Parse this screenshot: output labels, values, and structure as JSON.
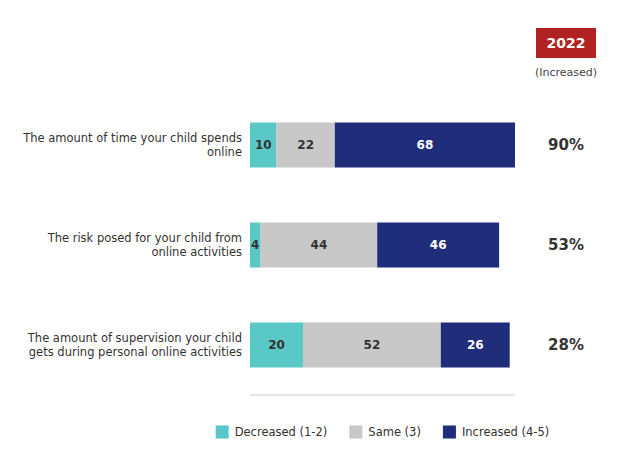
{
  "chart_data": {
    "type": "bar",
    "orientation": "horizontal",
    "stacked": true,
    "data_labels": true,
    "categories": [
      "The amount of time your child spends\nonline",
      "The risk posed for your child from\nonline activities",
      "The amount of supervision your child\ngets during personal online activities"
    ],
    "series": [
      {
        "name": "Decreased (1-2)",
        "color": "#5bc8c8",
        "values": [
          10,
          4,
          20
        ]
      },
      {
        "name": "Same (3)",
        "color": "#c8c8c8",
        "values": [
          22,
          44,
          52
        ]
      },
      {
        "name": "Increased (4-5)",
        "color": "#1f2d7b",
        "values": [
          68,
          46,
          26
        ]
      }
    ],
    "xlim": [
      0,
      100
    ],
    "tick_labels": false,
    "grid": false,
    "legend": "bottom",
    "annotations": [
      {
        "text": "2022",
        "color": "#b22222"
      },
      {
        "text": "(Increased)"
      },
      {
        "text": "90%"
      },
      {
        "text": "53%"
      },
      {
        "text": "28%"
      }
    ]
  }
}
